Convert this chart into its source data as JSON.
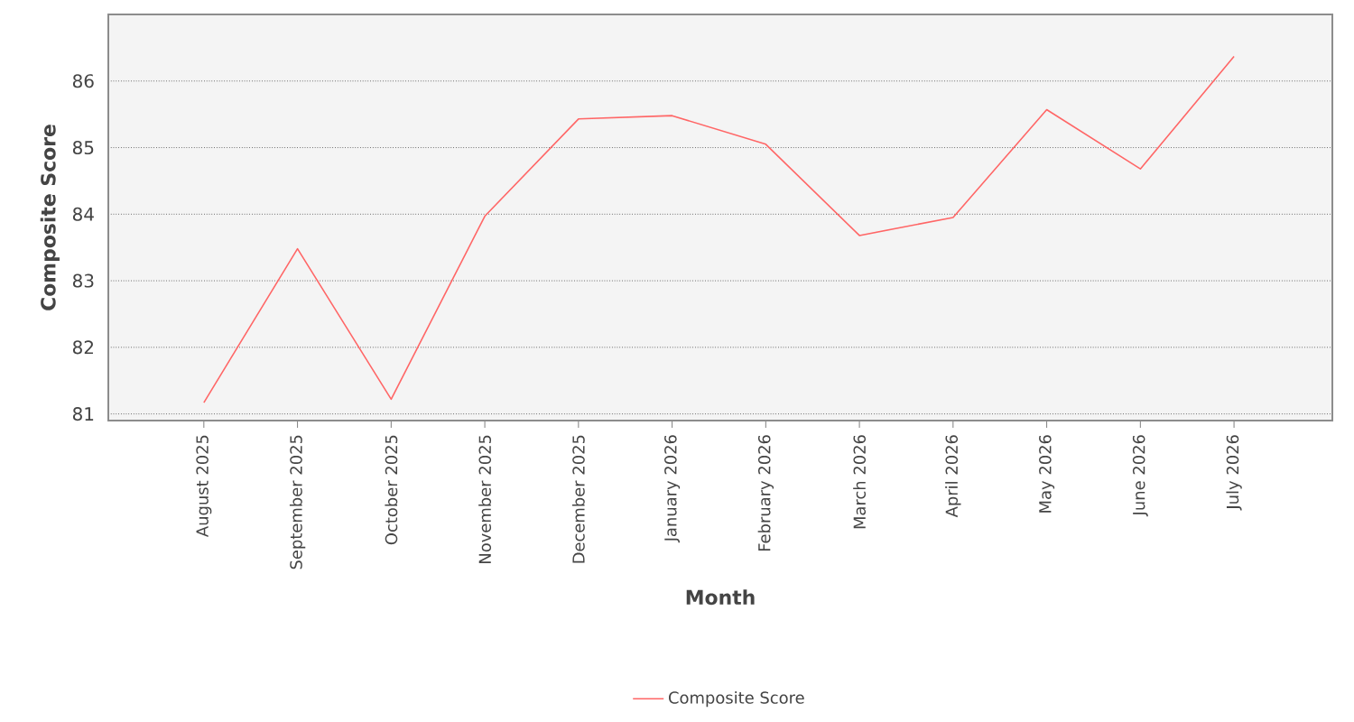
{
  "chart_data": {
    "type": "line",
    "xlabel": "Month",
    "ylabel": "Composite Score",
    "categories": [
      "August 2025",
      "September 2025",
      "October 2025",
      "November 2025",
      "December 2025",
      "January 2026",
      "February 2026",
      "March 2026",
      "April 2026",
      "May 2026",
      "June 2026",
      "July 2026"
    ],
    "series": [
      {
        "name": "Composite Score",
        "color": "#ff6666",
        "values": [
          81.17,
          83.48,
          81.22,
          83.97,
          85.43,
          85.48,
          85.05,
          83.68,
          83.95,
          85.57,
          84.68,
          86.37
        ]
      }
    ],
    "ylim": [
      80.9,
      87.0
    ],
    "yticks": [
      81,
      82,
      83,
      84,
      85,
      86
    ],
    "grid": "y",
    "legend": "bottom",
    "marker": "none",
    "line_style": "solid"
  }
}
